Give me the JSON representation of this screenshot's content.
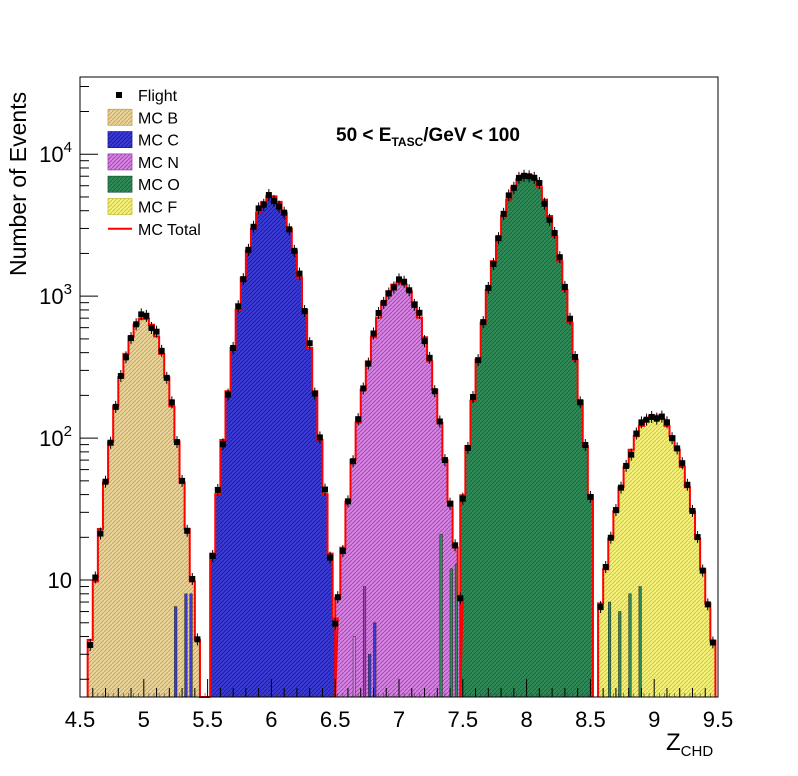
{
  "chart_data": {
    "type": "histogram",
    "title": "",
    "annotation": {
      "prefix": "50 < E",
      "subscript": "TASC",
      "suffix": "/GeV < 100"
    },
    "xlabel": {
      "main": "Z",
      "subscript": "CHD"
    },
    "ylabel": "Number of Events",
    "xlim": [
      4.5,
      9.5
    ],
    "ylim": [
      1.5,
      35000
    ],
    "y_scale": "log",
    "grid": false,
    "legend_position": "top-left",
    "x_ticks": [
      {
        "value": 4.5,
        "label": "4.5"
      },
      {
        "value": 5,
        "label": "5"
      },
      {
        "value": 5.5,
        "label": "5.5"
      },
      {
        "value": 6,
        "label": "6"
      },
      {
        "value": 6.5,
        "label": "6.5"
      },
      {
        "value": 7,
        "label": "7"
      },
      {
        "value": 7.5,
        "label": "7.5"
      },
      {
        "value": 8,
        "label": "8"
      },
      {
        "value": 8.5,
        "label": "8.5"
      },
      {
        "value": 9,
        "label": "9"
      },
      {
        "value": 9.5,
        "label": "9.5"
      }
    ],
    "y_ticks": [
      {
        "value": 10,
        "base": "10",
        "exp": ""
      },
      {
        "value": 100,
        "base": "10",
        "exp": "2"
      },
      {
        "value": 1000,
        "base": "10",
        "exp": "3"
      },
      {
        "value": 10000,
        "base": "10",
        "exp": "4"
      }
    ],
    "legend": [
      {
        "name": "Flight",
        "kind": "marker",
        "color": "#000000"
      },
      {
        "name": "MC B",
        "kind": "fill",
        "color": "#e8d39c",
        "hatch": "#c9a24a"
      },
      {
        "name": "MC C",
        "kind": "fill",
        "color": "#3a3ad6",
        "hatch": "#1b1b8f"
      },
      {
        "name": "MC N",
        "kind": "fill",
        "color": "#d583e0",
        "hatch": "#a040b0"
      },
      {
        "name": "MC O",
        "kind": "fill",
        "color": "#2e8b57",
        "hatch": "#1f5e3a"
      },
      {
        "name": "MC F",
        "kind": "fill",
        "color": "#f4f07a",
        "hatch": "#c8c23a"
      },
      {
        "name": "MC Total",
        "kind": "line",
        "color": "#ff0000"
      }
    ],
    "bin_width": 0.04,
    "series": [
      {
        "name": "MC B",
        "mean": 5.0,
        "sigma": 0.13,
        "peak": 700,
        "range": [
          4.56,
          5.52
        ]
      },
      {
        "name": "MC C",
        "mean": 6.0,
        "sigma": 0.135,
        "peak": 5100,
        "range": [
          5.52,
          6.5
        ]
      },
      {
        "name": "MC N",
        "mean": 7.0,
        "sigma": 0.15,
        "peak": 1250,
        "range": [
          6.5,
          7.48
        ]
      },
      {
        "name": "MC O",
        "mean": 8.0,
        "sigma": 0.155,
        "peak": 7200,
        "range": [
          7.48,
          8.52
        ]
      },
      {
        "name": "MC F",
        "mean": 9.0,
        "sigma": 0.17,
        "peak": 145,
        "range": [
          8.56,
          9.48
        ]
      }
    ],
    "flight_points_peaks": [
      {
        "x": 5.0,
        "y": 740
      },
      {
        "x": 6.0,
        "y": 5300
      },
      {
        "x": 7.0,
        "y": 1300
      },
      {
        "x": 8.0,
        "y": 7600
      },
      {
        "x": 9.0,
        "y": 150
      }
    ],
    "leak_bars": [
      {
        "x": 5.24,
        "y": 6.5,
        "color": "#3a3ad6"
      },
      {
        "x": 5.32,
        "y": 8,
        "color": "#3a3ad6"
      },
      {
        "x": 5.36,
        "y": 8,
        "color": "#3a3ad6"
      },
      {
        "x": 6.72,
        "y": 9,
        "color": "#a040b0"
      },
      {
        "x": 6.76,
        "y": 3,
        "color": "#3a3ad6"
      },
      {
        "x": 6.8,
        "y": 5,
        "color": "#3a3ad6"
      },
      {
        "x": 6.64,
        "y": 4,
        "color": "#d583e0"
      },
      {
        "x": 7.32,
        "y": 21,
        "color": "#2e8b57"
      },
      {
        "x": 7.4,
        "y": 12,
        "color": "#2e8b57"
      },
      {
        "x": 7.44,
        "y": 13,
        "color": "#2e8b57"
      },
      {
        "x": 8.64,
        "y": 7,
        "color": "#2e8b57"
      },
      {
        "x": 8.72,
        "y": 6,
        "color": "#2e8b57"
      },
      {
        "x": 8.8,
        "y": 8,
        "color": "#2e8b57"
      },
      {
        "x": 8.88,
        "y": 9,
        "color": "#2e8b57"
      }
    ]
  }
}
